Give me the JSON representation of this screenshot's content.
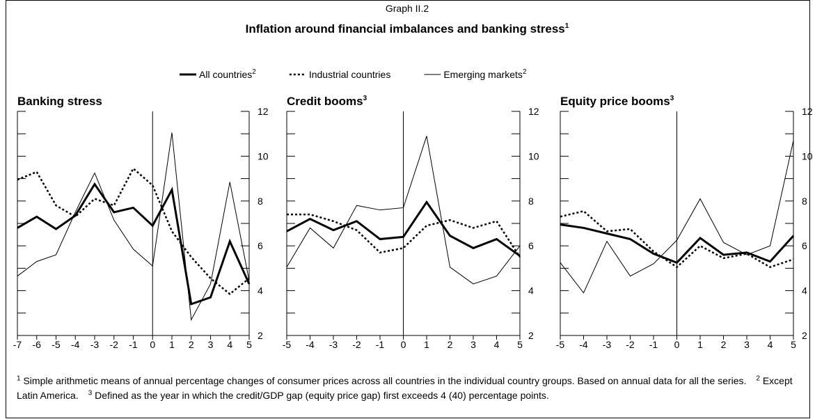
{
  "header": {
    "label": "Graph II.2",
    "title": "Inflation around financial imbalances and banking stress",
    "title_note": "1"
  },
  "legend": [
    {
      "name": "All countries",
      "note": "2",
      "style": "thick",
      "color": "#000000"
    },
    {
      "name": "Industrial countries",
      "style": "dotted",
      "color": "#000000"
    },
    {
      "name": "Emerging markets",
      "note": "2",
      "style": "thin",
      "color": "#000000"
    }
  ],
  "chart_data": [
    {
      "type": "line",
      "title": "Banking stress",
      "x": [
        -7,
        -6,
        -5,
        -4,
        -3,
        -2,
        -1,
        0,
        1,
        2,
        3,
        4,
        5
      ],
      "xlim": [
        -7,
        5
      ],
      "xticks": [
        -7,
        -6,
        -5,
        -4,
        -3,
        -2,
        -1,
        0,
        1,
        2,
        3,
        4,
        5
      ],
      "vline": 0,
      "ylim": [
        2,
        12
      ],
      "yticks": [
        2,
        4,
        6,
        8,
        10,
        12
      ],
      "yminor_ticks": [
        3,
        5,
        7,
        9,
        11
      ],
      "series": [
        {
          "values": [
            6.8,
            7.3,
            6.75,
            7.35,
            8.75,
            7.5,
            7.7,
            6.9,
            8.5,
            3.4,
            3.7,
            6.2,
            4.3
          ]
        },
        {
          "values": [
            8.95,
            9.3,
            7.8,
            7.3,
            8.1,
            7.8,
            9.45,
            8.7,
            6.65,
            5.5,
            4.55,
            3.85,
            4.55
          ]
        },
        {
          "values": [
            4.65,
            5.3,
            5.6,
            7.5,
            9.25,
            7.15,
            5.85,
            5.1,
            11.05,
            2.7,
            4.3,
            8.85,
            4.45
          ]
        }
      ]
    },
    {
      "type": "line",
      "title": "Credit booms",
      "title_note": "3",
      "x": [
        -5,
        -4,
        -3,
        -2,
        -1,
        0,
        1,
        2,
        3,
        4,
        5
      ],
      "xlim": [
        -5,
        5
      ],
      "xticks": [
        -5,
        -4,
        -3,
        -2,
        -1,
        0,
        1,
        2,
        3,
        4,
        5
      ],
      "vline": 0,
      "ylim": [
        2,
        12
      ],
      "yticks": [
        2,
        4,
        6,
        8,
        10,
        12
      ],
      "yminor_ticks": [
        3,
        5,
        7,
        9,
        11
      ],
      "series": [
        {
          "values": [
            6.65,
            7.2,
            6.7,
            7.1,
            6.3,
            6.4,
            7.95,
            6.45,
            5.9,
            6.3,
            5.55
          ]
        },
        {
          "values": [
            7.4,
            7.4,
            7.1,
            6.7,
            5.7,
            5.9,
            6.9,
            7.15,
            6.8,
            7.1,
            5.5
          ]
        },
        {
          "values": [
            5.05,
            6.8,
            5.9,
            7.8,
            7.6,
            7.7,
            10.9,
            5.05,
            4.3,
            4.65,
            6.0
          ]
        }
      ]
    },
    {
      "type": "line",
      "title": "Equity price booms",
      "title_note": "3",
      "x": [
        -5,
        -4,
        -3,
        -2,
        -1,
        0,
        1,
        2,
        3,
        4,
        5
      ],
      "xlim": [
        -5,
        5
      ],
      "xticks": [
        -5,
        -4,
        -3,
        -2,
        -1,
        0,
        1,
        2,
        3,
        4,
        5
      ],
      "vline": 0,
      "ylim": [
        2,
        12
      ],
      "yticks": [
        2,
        4,
        6,
        8,
        10,
        12
      ],
      "yminor_ticks": [
        3,
        5,
        7,
        9,
        11
      ],
      "series": [
        {
          "values": [
            6.95,
            6.8,
            6.55,
            6.3,
            5.65,
            5.25,
            6.35,
            5.6,
            5.7,
            5.3,
            6.45
          ]
        },
        {
          "values": [
            7.3,
            7.55,
            6.65,
            6.75,
            5.75,
            5.05,
            6.0,
            5.45,
            5.65,
            5.05,
            5.4
          ]
        },
        {
          "values": [
            5.25,
            3.9,
            6.2,
            4.65,
            5.2,
            6.25,
            8.1,
            6.15,
            5.6,
            6.0,
            10.7
          ]
        }
      ]
    }
  ],
  "footnotes": [
    {
      "mark": "1",
      "text": "Simple arithmetic means of annual percentage changes of consumer prices across all countries in the individual country groups. Based on annual data for all the series."
    },
    {
      "mark": "2",
      "text": "Except Latin America."
    },
    {
      "mark": "3",
      "text": "Defined as the year in which the credit/GDP gap (equity price gap) first exceeds 4 (40) percentage points."
    }
  ]
}
